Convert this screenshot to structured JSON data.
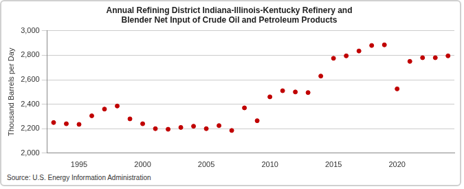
{
  "chart_data": {
    "type": "scatter",
    "title": "Annual Refining District Indiana-Illinois-Kentucky Refinery and Blender Net Input of Crude Oil and Petroleum Products",
    "y_label": "Thousand Barrels per Day",
    "source": "Source: U.S. Energy Information Administration",
    "x": [
      1993,
      1994,
      1995,
      1996,
      1997,
      1998,
      1999,
      2000,
      2001,
      2002,
      2003,
      2004,
      2005,
      2006,
      2007,
      2008,
      2009,
      2010,
      2011,
      2012,
      2013,
      2014,
      2015,
      2016,
      2017,
      2018,
      2019,
      2020,
      2021,
      2022,
      2023,
      2024
    ],
    "values": [
      2250,
      2240,
      2235,
      2305,
      2360,
      2385,
      2280,
      2240,
      2200,
      2195,
      2210,
      2220,
      2200,
      2225,
      2185,
      2370,
      2265,
      2460,
      2510,
      2500,
      2495,
      2630,
      2775,
      2795,
      2835,
      2880,
      2885,
      2525,
      2750,
      2780,
      2780,
      2795
    ],
    "color": "#c00000",
    "marker": "circle",
    "xlim": [
      1992.5,
      2024.5
    ],
    "xticks": [
      1995,
      2000,
      2005,
      2010,
      2015,
      2020
    ],
    "ylim": [
      2000,
      3000
    ],
    "yticks": [
      {
        "value": 2000,
        "label": "2,000"
      },
      {
        "value": 2200,
        "label": "2,200"
      },
      {
        "value": 2400,
        "label": "2,400"
      },
      {
        "value": 2600,
        "label": "2,600"
      },
      {
        "value": 2800,
        "label": "2,800"
      },
      {
        "value": 3000,
        "label": "3,000"
      }
    ],
    "grid": true
  }
}
